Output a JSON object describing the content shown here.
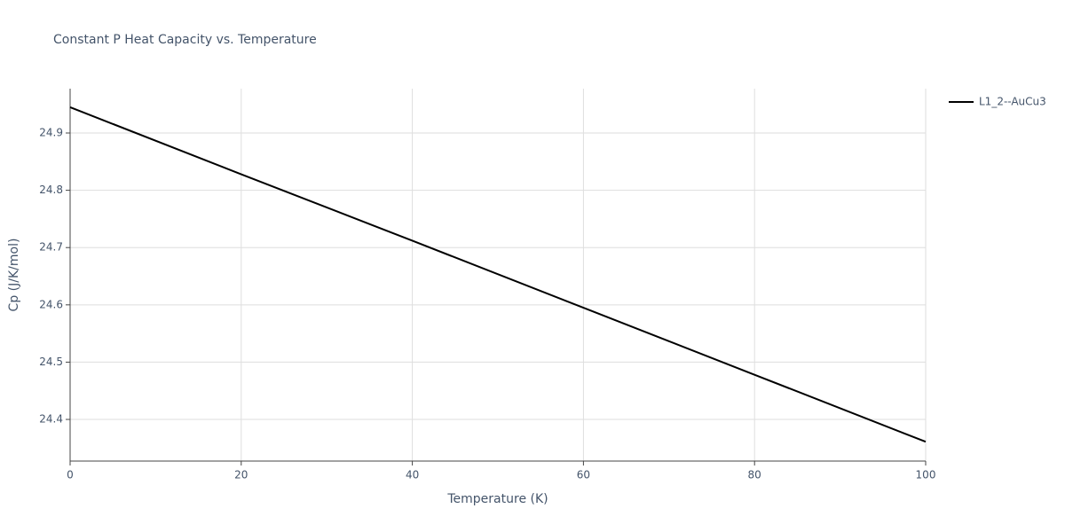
{
  "chart_data": {
    "type": "line",
    "title": "Constant P Heat Capacity vs. Temperature",
    "x_label": "Temperature (K)",
    "y_label": "Cp (J/K/mol)",
    "x": [
      0,
      20,
      40,
      60,
      80,
      100
    ],
    "series": [
      {
        "name": "L1_2--AuCu3",
        "color": "#000000",
        "values": [
          24.945,
          24.828,
          24.712,
          24.595,
          24.478,
          24.361
        ]
      }
    ],
    "xlim": [
      0,
      100
    ],
    "xticks": [
      0,
      20,
      40,
      60,
      80,
      100
    ],
    "ylim": [
      24.3273,
      24.9774
    ],
    "yticks": [
      24.4,
      24.5,
      24.6,
      24.7,
      24.8,
      24.9
    ],
    "grid": true,
    "legend": "right"
  }
}
